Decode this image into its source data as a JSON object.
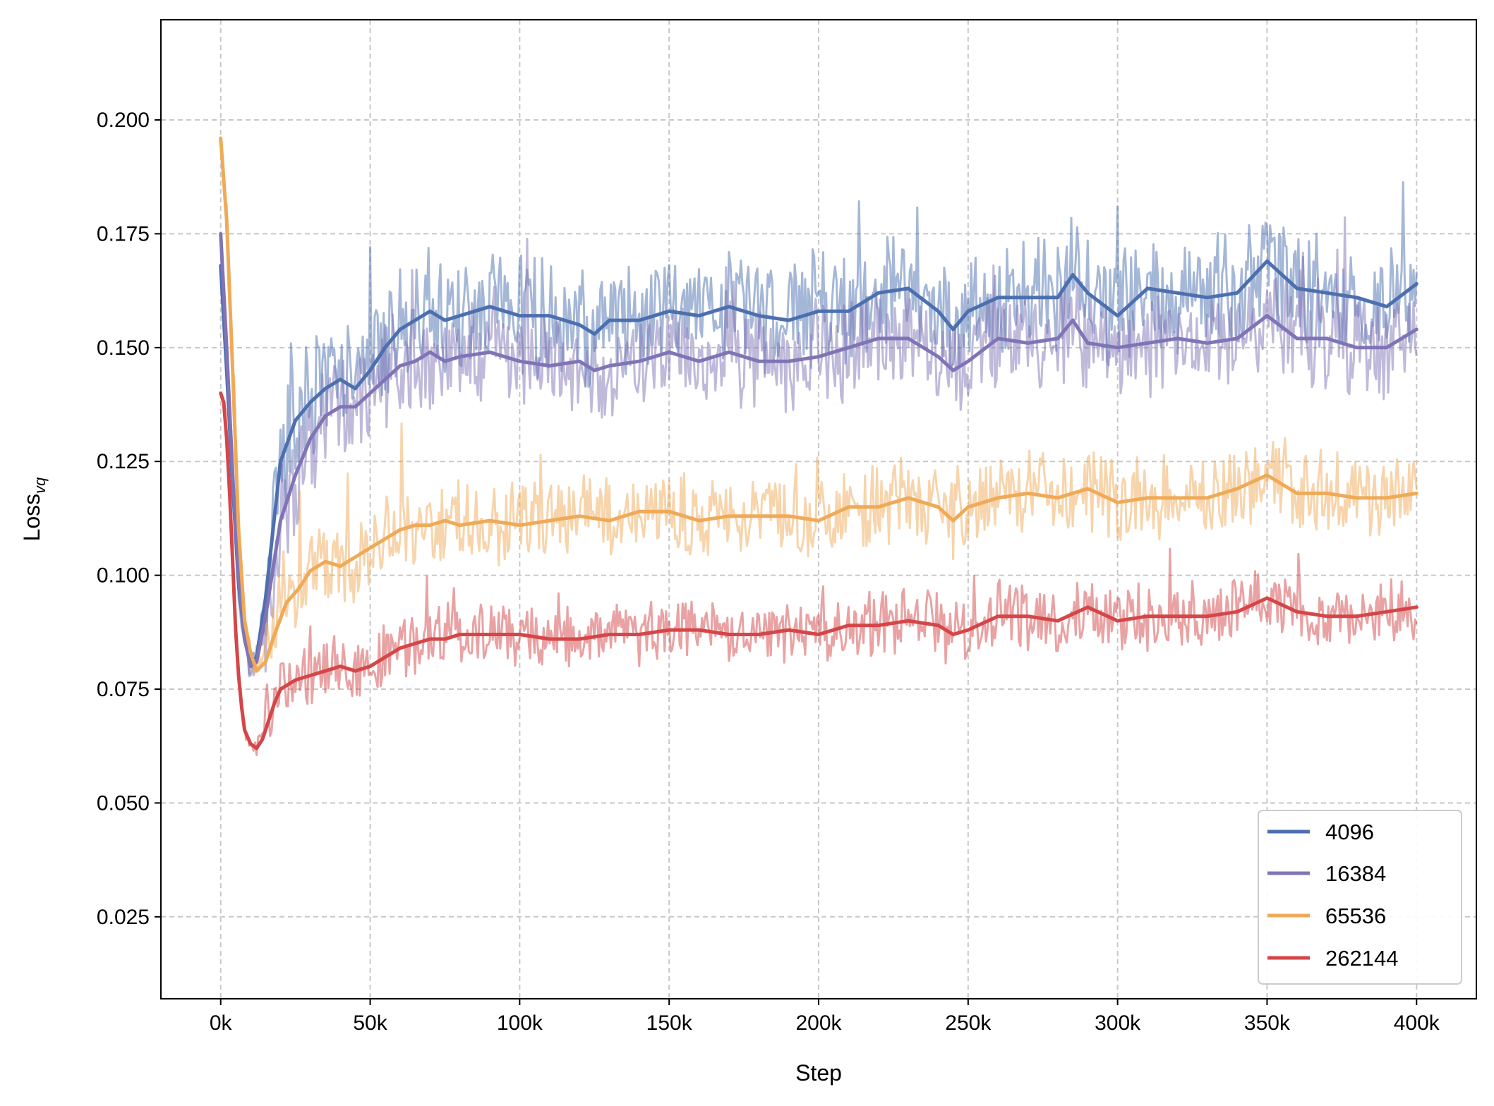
{
  "chart_data": {
    "type": "line",
    "title": "",
    "xlabel": "Step",
    "ylabel": "Loss",
    "ylabel_subscript": "vq",
    "xlim": [
      -20000,
      420000
    ],
    "ylim": [
      0.007,
      0.222
    ],
    "grid": true,
    "legend_position": "lower-right",
    "x_ticks": [
      {
        "value": 0,
        "label": "0k"
      },
      {
        "value": 50000,
        "label": "50k"
      },
      {
        "value": 100000,
        "label": "100k"
      },
      {
        "value": 150000,
        "label": "150k"
      },
      {
        "value": 200000,
        "label": "200k"
      },
      {
        "value": 250000,
        "label": "250k"
      },
      {
        "value": 300000,
        "label": "300k"
      },
      {
        "value": 350000,
        "label": "350k"
      },
      {
        "value": 400000,
        "label": "400k"
      }
    ],
    "y_ticks": [
      {
        "value": 0.025,
        "label": "0.025"
      },
      {
        "value": 0.05,
        "label": "0.050"
      },
      {
        "value": 0.075,
        "label": "0.075"
      },
      {
        "value": 0.1,
        "label": "0.100"
      },
      {
        "value": 0.125,
        "label": "0.125"
      },
      {
        "value": 0.15,
        "label": "0.150"
      },
      {
        "value": 0.175,
        "label": "0.175"
      },
      {
        "value": 0.2,
        "label": "0.200"
      }
    ],
    "raw_noise_band": {
      "4096": 0.011,
      "16384": 0.01,
      "65536": 0.008,
      "262144": 0.006
    },
    "series": [
      {
        "name": "4096",
        "color": "#4c6faf",
        "x": [
          0,
          2000,
          4000,
          6000,
          8000,
          10000,
          12000,
          15000,
          20000,
          25000,
          30000,
          35000,
          40000,
          45000,
          50000,
          55000,
          60000,
          65000,
          70000,
          75000,
          80000,
          85000,
          90000,
          95000,
          100000,
          110000,
          120000,
          125000,
          130000,
          140000,
          150000,
          160000,
          170000,
          180000,
          190000,
          200000,
          210000,
          220000,
          230000,
          240000,
          245000,
          250000,
          260000,
          270000,
          280000,
          285000,
          290000,
          300000,
          305000,
          310000,
          320000,
          330000,
          340000,
          350000,
          360000,
          370000,
          380000,
          390000,
          400000
        ],
        "values": [
          0.168,
          0.145,
          0.12,
          0.098,
          0.086,
          0.081,
          0.082,
          0.095,
          0.125,
          0.134,
          0.138,
          0.141,
          0.143,
          0.141,
          0.145,
          0.15,
          0.154,
          0.156,
          0.158,
          0.156,
          0.157,
          0.158,
          0.159,
          0.158,
          0.157,
          0.157,
          0.155,
          0.153,
          0.156,
          0.156,
          0.158,
          0.157,
          0.159,
          0.157,
          0.156,
          0.158,
          0.158,
          0.162,
          0.163,
          0.158,
          0.154,
          0.158,
          0.161,
          0.161,
          0.161,
          0.166,
          0.162,
          0.157,
          0.16,
          0.163,
          0.162,
          0.161,
          0.162,
          0.169,
          0.163,
          0.162,
          0.161,
          0.159,
          0.164
        ]
      },
      {
        "name": "16384",
        "color": "#8074b6",
        "x": [
          0,
          2000,
          4000,
          6000,
          8000,
          10000,
          12000,
          15000,
          20000,
          25000,
          30000,
          35000,
          40000,
          45000,
          50000,
          55000,
          60000,
          65000,
          70000,
          75000,
          80000,
          90000,
          100000,
          110000,
          120000,
          125000,
          130000,
          140000,
          150000,
          160000,
          170000,
          180000,
          190000,
          200000,
          210000,
          220000,
          230000,
          240000,
          245000,
          250000,
          260000,
          270000,
          280000,
          285000,
          290000,
          300000,
          310000,
          320000,
          330000,
          340000,
          350000,
          360000,
          370000,
          380000,
          390000,
          400000
        ],
        "values": [
          0.175,
          0.15,
          0.122,
          0.1,
          0.086,
          0.08,
          0.081,
          0.091,
          0.112,
          0.122,
          0.13,
          0.135,
          0.137,
          0.137,
          0.14,
          0.143,
          0.146,
          0.147,
          0.149,
          0.147,
          0.148,
          0.149,
          0.147,
          0.146,
          0.147,
          0.145,
          0.146,
          0.147,
          0.149,
          0.147,
          0.149,
          0.147,
          0.147,
          0.148,
          0.15,
          0.152,
          0.152,
          0.148,
          0.145,
          0.147,
          0.152,
          0.151,
          0.152,
          0.156,
          0.151,
          0.15,
          0.151,
          0.152,
          0.151,
          0.152,
          0.157,
          0.152,
          0.152,
          0.15,
          0.15,
          0.154
        ]
      },
      {
        "name": "65536",
        "color": "#efaa58",
        "x": [
          0,
          2000,
          4000,
          6000,
          8000,
          10000,
          12000,
          15000,
          18000,
          22000,
          26000,
          30000,
          35000,
          40000,
          45000,
          50000,
          55000,
          60000,
          65000,
          70000,
          75000,
          80000,
          90000,
          100000,
          110000,
          120000,
          130000,
          140000,
          150000,
          160000,
          170000,
          180000,
          190000,
          200000,
          210000,
          220000,
          230000,
          240000,
          245000,
          250000,
          260000,
          270000,
          280000,
          290000,
          300000,
          310000,
          320000,
          330000,
          340000,
          350000,
          360000,
          370000,
          380000,
          390000,
          400000
        ],
        "values": [
          0.196,
          0.178,
          0.145,
          0.11,
          0.09,
          0.083,
          0.079,
          0.081,
          0.087,
          0.094,
          0.097,
          0.101,
          0.103,
          0.102,
          0.104,
          0.106,
          0.108,
          0.11,
          0.111,
          0.111,
          0.112,
          0.111,
          0.112,
          0.111,
          0.112,
          0.113,
          0.112,
          0.114,
          0.114,
          0.112,
          0.113,
          0.113,
          0.113,
          0.112,
          0.115,
          0.115,
          0.117,
          0.115,
          0.112,
          0.115,
          0.117,
          0.118,
          0.117,
          0.119,
          0.116,
          0.117,
          0.117,
          0.117,
          0.119,
          0.122,
          0.118,
          0.118,
          0.117,
          0.117,
          0.118
        ]
      },
      {
        "name": "262144",
        "color": "#d44648",
        "x": [
          0,
          1000,
          2000,
          3000,
          4000,
          5000,
          6000,
          7000,
          8000,
          10000,
          12000,
          14000,
          16000,
          18000,
          20000,
          25000,
          30000,
          35000,
          40000,
          45000,
          50000,
          55000,
          60000,
          65000,
          70000,
          75000,
          80000,
          90000,
          100000,
          110000,
          120000,
          130000,
          140000,
          150000,
          160000,
          170000,
          180000,
          190000,
          200000,
          210000,
          220000,
          230000,
          240000,
          245000,
          250000,
          260000,
          270000,
          280000,
          290000,
          300000,
          310000,
          320000,
          330000,
          340000,
          350000,
          360000,
          370000,
          380000,
          390000,
          400000
        ],
        "values": [
          0.14,
          0.138,
          0.13,
          0.118,
          0.103,
          0.088,
          0.078,
          0.071,
          0.066,
          0.063,
          0.062,
          0.064,
          0.068,
          0.072,
          0.075,
          0.077,
          0.078,
          0.079,
          0.08,
          0.079,
          0.08,
          0.082,
          0.084,
          0.085,
          0.086,
          0.086,
          0.087,
          0.087,
          0.087,
          0.086,
          0.086,
          0.087,
          0.087,
          0.088,
          0.088,
          0.087,
          0.087,
          0.088,
          0.087,
          0.089,
          0.089,
          0.09,
          0.089,
          0.087,
          0.088,
          0.091,
          0.091,
          0.09,
          0.093,
          0.09,
          0.091,
          0.091,
          0.091,
          0.092,
          0.095,
          0.092,
          0.091,
          0.091,
          0.092,
          0.093
        ]
      }
    ]
  }
}
